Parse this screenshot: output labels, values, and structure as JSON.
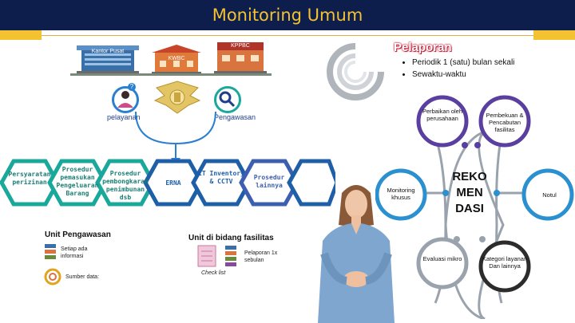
{
  "slide": {
    "title": "Monitoring Umum"
  },
  "buildings": {
    "kantor_pusat": "Kantor Pusat",
    "kwbc": "KWBC",
    "kppbc": "KPPBC"
  },
  "roles": {
    "pelayanan": "pelayanan",
    "pengawasan": "Pengawasan"
  },
  "pelaporan": {
    "title": "Pelaporan",
    "bullets": [
      "Periodik 1 (satu) bulan sekali",
      "Sewaktu-waktu"
    ]
  },
  "flow": {
    "steps": [
      "Persyaratan perizinan",
      "Prosedur pemasukan Pengeluaran Barang",
      "Prosedur pembongkaran penimbunan dsb",
      "ERNA",
      "IT Inventory & CCTV",
      "Prosedur lainnya"
    ]
  },
  "rekomendasi": {
    "center": [
      "REKO",
      "MEN",
      "DASI"
    ],
    "items": [
      "Perbaikan oleh perusahaan",
      "Pembekuan & Pencabutan fasilitas",
      "Monitoring khusus",
      "Notul",
      "Evaluasi mikro",
      "Kategori layanan Dan lainnya"
    ]
  },
  "unit_pengawasan": {
    "title": "Unit Pengawasan",
    "item1": "Setiap ada informasi",
    "item2": "Sumber data:"
  },
  "unit_fasilitas": {
    "title": "Unit di bidang fasilitas",
    "item1": "Pelaporan 1x sebulan",
    "checklist": "Check list"
  },
  "colors": {
    "header_bg": "#0d1e4d",
    "title": "#f2c230",
    "accent_gold": "#f2c230",
    "flow_teal": "#1aa89a",
    "flow_blue": "#1f5fa8",
    "flow_purple": "#5b3fa0"
  }
}
